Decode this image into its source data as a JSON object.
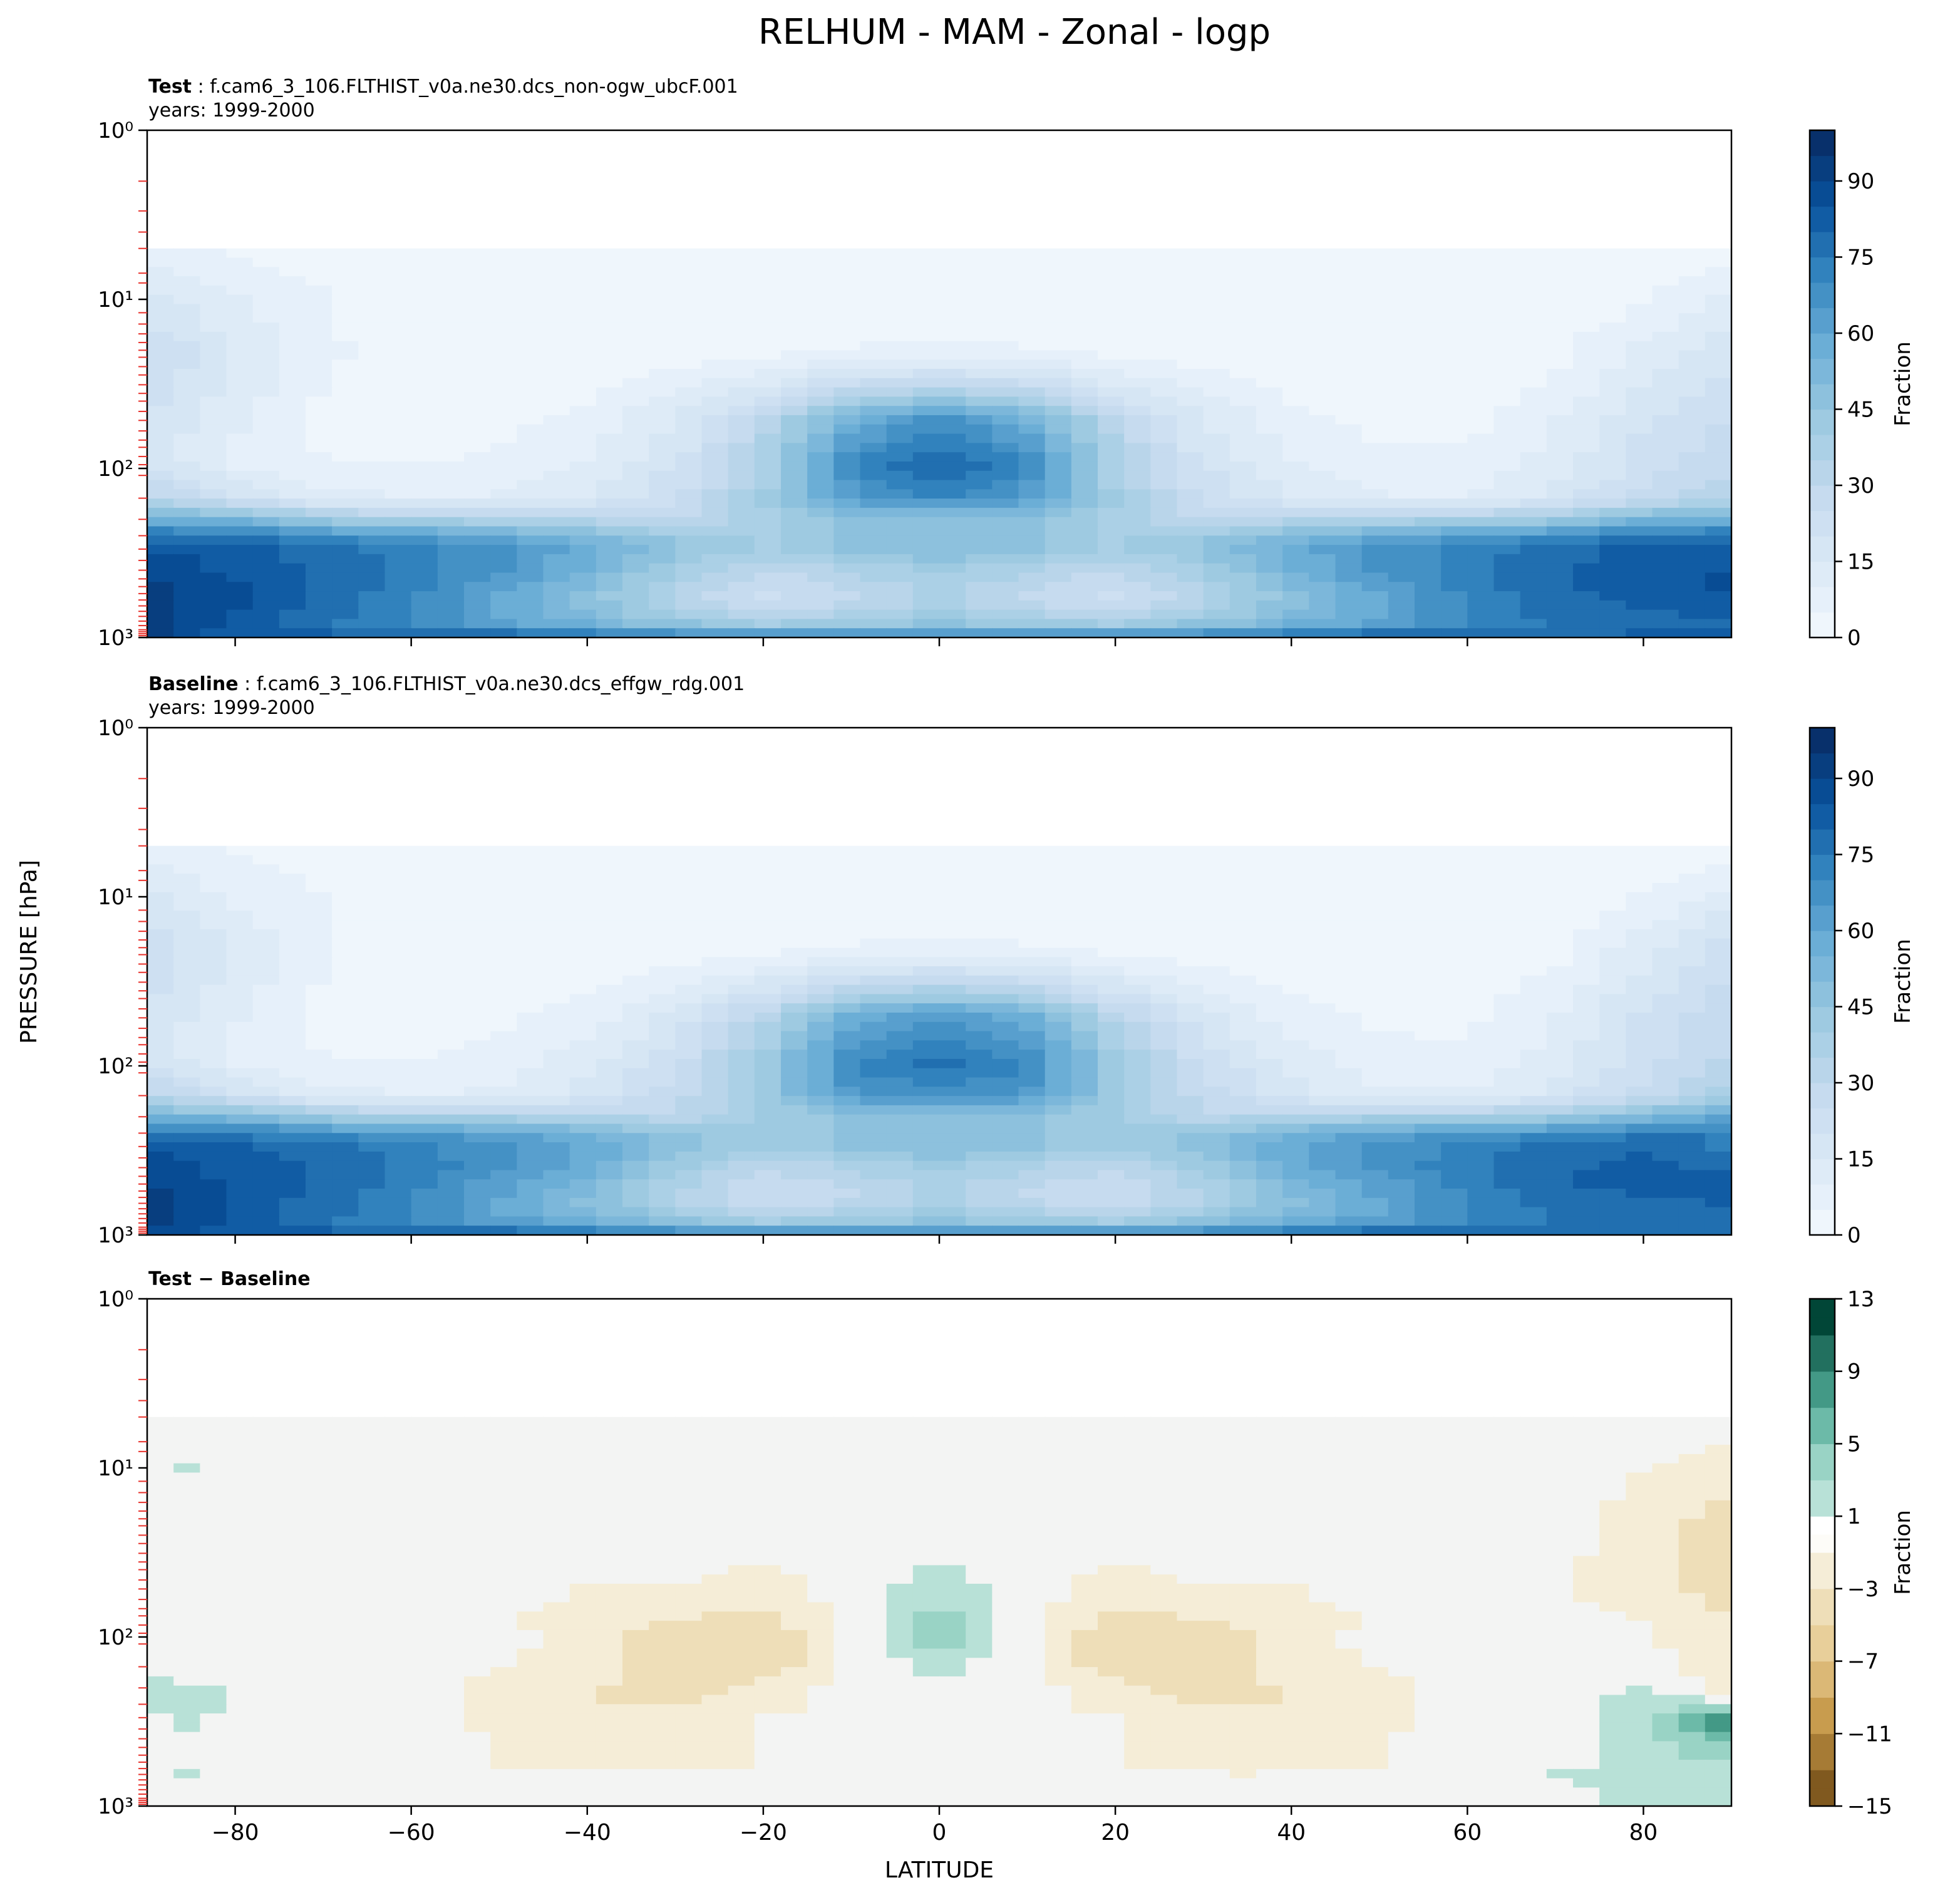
{
  "figure_title": "RELHUM - MAM - Zonal - logp",
  "ylabel": "PRESSURE [hPa]",
  "xlabel": "LATITUDE",
  "colorbar_label": "Fraction",
  "panels": [
    {
      "id": "test",
      "title_bold": "Test",
      "title_rest": " : f.cam6_3_106.FLTHIST_v0a.ne30.dcs_non-ogw_ubcF.001",
      "years": "years: 1999-2000",
      "colorbar": {
        "cmap": "Blues",
        "ticks": [
          "0",
          "15",
          "30",
          "45",
          "60",
          "75",
          "90"
        ],
        "vmin": 0,
        "vmax": 100
      }
    },
    {
      "id": "baseline",
      "title_bold": "Baseline",
      "title_rest": " : f.cam6_3_106.FLTHIST_v0a.ne30.dcs_effgw_rdg.001",
      "years": "years: 1999-2000",
      "colorbar": {
        "cmap": "Blues",
        "ticks": [
          "0",
          "15",
          "30",
          "45",
          "60",
          "75",
          "90"
        ],
        "vmin": 0,
        "vmax": 100
      }
    },
    {
      "id": "diff",
      "title_bold": "Test − Baseline",
      "title_rest": "",
      "years": "",
      "colorbar": {
        "cmap": "BrBG",
        "ticks": [
          "−15",
          "−11",
          "−7",
          "−3",
          "1",
          "5",
          "9",
          "13"
        ],
        "vmin": -15,
        "vmax": 13
      }
    }
  ],
  "chart_data": {
    "type": "heatmap",
    "title": "RELHUM - MAM - Zonal - logp",
    "xlabel": "LATITUDE",
    "ylabel": "PRESSURE [hPa]",
    "x_ticks": [
      "−80",
      "−60",
      "−40",
      "−20",
      "0",
      "20",
      "40",
      "60",
      "80"
    ],
    "x_tick_values": [
      -80,
      -60,
      -40,
      -20,
      0,
      20,
      40,
      60,
      80
    ],
    "xlim": [
      -90,
      90
    ],
    "y_ticks": [
      "10⁰",
      "10¹",
      "10²",
      "10³"
    ],
    "y_tick_values": [
      1,
      10,
      100,
      1000
    ],
    "ylim": [
      1000,
      1
    ],
    "yscale": "log",
    "data_top_hPa": 5,
    "lat": [
      -90,
      -80,
      -70,
      -60,
      -50,
      -40,
      -30,
      -20,
      -10,
      0,
      10,
      20,
      30,
      40,
      50,
      60,
      70,
      80,
      90
    ],
    "pressure": [
      5,
      10,
      20,
      50,
      80,
      100,
      150,
      200,
      250,
      300,
      400,
      500,
      600,
      700,
      850,
      925,
      1000
    ],
    "test_rh": [
      [
        10,
        7,
        5,
        4,
        4,
        4,
        4,
        4,
        4,
        4,
        4,
        4,
        4,
        4,
        4,
        4,
        4,
        4,
        5
      ],
      [
        20,
        13,
        8,
        4,
        4,
        4,
        4,
        4,
        4,
        4,
        4,
        4,
        4,
        4,
        4,
        4,
        4,
        7,
        14
      ],
      [
        28,
        18,
        9,
        4,
        4,
        4,
        5,
        6,
        8,
        9,
        8,
        6,
        5,
        4,
        4,
        4,
        6,
        14,
        22
      ],
      [
        22,
        14,
        6,
        5,
        6,
        9,
        18,
        34,
        58,
        70,
        58,
        34,
        18,
        9,
        6,
        6,
        12,
        22,
        28
      ],
      [
        20,
        10,
        7,
        6,
        8,
        12,
        20,
        38,
        70,
        80,
        70,
        38,
        20,
        12,
        8,
        8,
        14,
        24,
        30
      ],
      [
        25,
        12,
        9,
        8,
        10,
        14,
        24,
        40,
        72,
        84,
        72,
        40,
        24,
        14,
        10,
        10,
        15,
        25,
        32
      ],
      [
        35,
        25,
        15,
        12,
        13,
        18,
        26,
        42,
        65,
        72,
        65,
        42,
        26,
        18,
        13,
        13,
        20,
        30,
        38
      ],
      [
        60,
        55,
        45,
        40,
        38,
        35,
        30,
        40,
        48,
        50,
        48,
        40,
        30,
        35,
        38,
        40,
        45,
        55,
        60
      ],
      [
        80,
        78,
        72,
        68,
        62,
        55,
        45,
        42,
        48,
        52,
        48,
        42,
        45,
        55,
        62,
        68,
        72,
        78,
        80
      ],
      [
        88,
        84,
        80,
        74,
        68,
        60,
        48,
        42,
        48,
        52,
        48,
        42,
        48,
        60,
        68,
        74,
        80,
        84,
        86
      ],
      [
        92,
        86,
        82,
        76,
        68,
        58,
        42,
        32,
        38,
        44,
        38,
        32,
        42,
        58,
        68,
        76,
        82,
        86,
        88
      ],
      [
        94,
        88,
        82,
        74,
        64,
        52,
        38,
        28,
        34,
        40,
        34,
        28,
        38,
        52,
        64,
        74,
        82,
        86,
        88
      ],
      [
        95,
        88,
        80,
        72,
        62,
        50,
        36,
        26,
        32,
        38,
        32,
        26,
        36,
        50,
        62,
        72,
        80,
        84,
        86
      ],
      [
        96,
        88,
        80,
        72,
        62,
        52,
        40,
        32,
        36,
        42,
        36,
        32,
        40,
        52,
        62,
        72,
        80,
        82,
        84
      ],
      [
        96,
        86,
        78,
        72,
        66,
        58,
        50,
        44,
        46,
        50,
        46,
        44,
        50,
        58,
        66,
        72,
        78,
        80,
        82
      ],
      [
        95,
        84,
        82,
        80,
        76,
        70,
        64,
        60,
        60,
        62,
        60,
        60,
        64,
        70,
        76,
        80,
        80,
        82,
        84
      ],
      [
        92,
        86,
        86,
        88,
        88,
        86,
        84,
        82,
        82,
        84,
        82,
        82,
        84,
        86,
        88,
        88,
        86,
        86,
        86
      ]
    ],
    "baseline_rh": [
      [
        10,
        7,
        5,
        4,
        4,
        4,
        4,
        4,
        4,
        4,
        4,
        4,
        4,
        4,
        4,
        4,
        4,
        4,
        5
      ],
      [
        19,
        12,
        8,
        4,
        4,
        4,
        4,
        4,
        4,
        4,
        4,
        4,
        4,
        4,
        4,
        4,
        4,
        8,
        16
      ],
      [
        27,
        17,
        8,
        4,
        4,
        4,
        5,
        6,
        8,
        9,
        8,
        6,
        5,
        4,
        4,
        4,
        6,
        16,
        26
      ],
      [
        22,
        13,
        6,
        5,
        6,
        10,
        19,
        36,
        58,
        68,
        58,
        36,
        19,
        10,
        6,
        6,
        13,
        24,
        32
      ],
      [
        20,
        10,
        7,
        6,
        9,
        14,
        23,
        42,
        70,
        76,
        70,
        42,
        23,
        14,
        9,
        8,
        14,
        25,
        32
      ],
      [
        25,
        12,
        9,
        8,
        10,
        16,
        28,
        45,
        72,
        80,
        72,
        45,
        28,
        16,
        10,
        10,
        15,
        26,
        34
      ],
      [
        35,
        25,
        15,
        12,
        14,
        20,
        30,
        46,
        66,
        70,
        66,
        46,
        30,
        20,
        14,
        13,
        20,
        30,
        40
      ],
      [
        58,
        54,
        45,
        40,
        40,
        38,
        34,
        42,
        48,
        50,
        48,
        42,
        34,
        38,
        40,
        40,
        45,
        54,
        62
      ],
      [
        78,
        77,
        72,
        68,
        64,
        58,
        48,
        44,
        48,
        52,
        48,
        44,
        48,
        58,
        64,
        68,
        72,
        76,
        78
      ],
      [
        87,
        83,
        80,
        74,
        70,
        62,
        50,
        43,
        48,
        52,
        48,
        43,
        50,
        62,
        70,
        74,
        80,
        82,
        76
      ],
      [
        91,
        85,
        82,
        76,
        69,
        60,
        44,
        33,
        38,
        44,
        38,
        33,
        44,
        60,
        69,
        76,
        82,
        84,
        82
      ],
      [
        93,
        87,
        82,
        74,
        65,
        54,
        40,
        29,
        34,
        40,
        34,
        29,
        40,
        54,
        65,
        74,
        82,
        84,
        84
      ],
      [
        94,
        87,
        80,
        72,
        63,
        51,
        37,
        27,
        32,
        38,
        32,
        27,
        37,
        51,
        63,
        72,
        80,
        83,
        84
      ],
      [
        95,
        87,
        80,
        72,
        62,
        53,
        41,
        32,
        36,
        42,
        36,
        32,
        41,
        53,
        62,
        72,
        79,
        80,
        82
      ],
      [
        95,
        85,
        78,
        72,
        66,
        58,
        50,
        44,
        46,
        50,
        46,
        44,
        50,
        58,
        66,
        72,
        78,
        78,
        80
      ],
      [
        94,
        83,
        82,
        80,
        76,
        70,
        64,
        60,
        60,
        62,
        60,
        60,
        64,
        70,
        76,
        80,
        80,
        80,
        82
      ],
      [
        91,
        85,
        86,
        88,
        88,
        86,
        84,
        82,
        82,
        84,
        82,
        82,
        84,
        86,
        88,
        88,
        86,
        85,
        85
      ]
    ],
    "diff_rh": [
      [
        0,
        0,
        0,
        0,
        0,
        0,
        0,
        0,
        0,
        0,
        0,
        0,
        0,
        0,
        0,
        0,
        0,
        0,
        0
      ],
      [
        1,
        1,
        0,
        0,
        0,
        0,
        0,
        0,
        0,
        0,
        0,
        0,
        0,
        0,
        0,
        0,
        0,
        -1,
        -2
      ],
      [
        1,
        1,
        1,
        0,
        0,
        0,
        0,
        0,
        0,
        0,
        0,
        0,
        0,
        0,
        0,
        0,
        0,
        -2,
        -4
      ],
      [
        0,
        1,
        0,
        0,
        0,
        -1,
        -1,
        -2,
        0,
        2,
        0,
        -2,
        -1,
        -1,
        0,
        0,
        -1,
        -2,
        -4
      ],
      [
        0,
        0,
        0,
        0,
        -1,
        -2,
        -3,
        -4,
        0,
        4,
        0,
        -4,
        -3,
        -2,
        -1,
        0,
        0,
        -1,
        -3
      ],
      [
        0,
        0,
        0,
        0,
        0,
        -2,
        -4,
        -5,
        0,
        4,
        0,
        -5,
        -4,
        -2,
        0,
        0,
        0,
        -1,
        -2
      ],
      [
        0,
        0,
        0,
        0,
        -1,
        -2,
        -4,
        -4,
        -1,
        2,
        -1,
        -4,
        -4,
        -2,
        -1,
        0,
        0,
        0,
        -2
      ],
      [
        2,
        1,
        0,
        0,
        -2,
        -3,
        -4,
        -2,
        0,
        0,
        0,
        -2,
        -4,
        -3,
        -2,
        0,
        0,
        1,
        -2
      ],
      [
        2,
        1,
        0,
        0,
        -2,
        -3,
        -3,
        -2,
        0,
        0,
        0,
        -2,
        -3,
        -3,
        -2,
        0,
        0,
        2,
        2
      ],
      [
        1,
        1,
        0,
        0,
        -2,
        -2,
        -2,
        -1,
        0,
        0,
        0,
        -1,
        -2,
        -2,
        -2,
        0,
        0,
        2,
        10
      ],
      [
        1,
        1,
        0,
        0,
        -1,
        -2,
        -2,
        -1,
        0,
        0,
        0,
        -1,
        -2,
        -2,
        -1,
        0,
        0,
        2,
        6
      ],
      [
        1,
        1,
        0,
        0,
        -1,
        -2,
        -2,
        -1,
        0,
        0,
        0,
        -1,
        -2,
        -2,
        -1,
        0,
        0,
        2,
        4
      ],
      [
        1,
        1,
        0,
        0,
        -1,
        -1,
        -1,
        -1,
        0,
        0,
        0,
        -1,
        -1,
        -1,
        -1,
        0,
        1,
        1,
        2
      ],
      [
        1,
        1,
        0,
        0,
        0,
        -1,
        -1,
        0,
        0,
        0,
        0,
        0,
        -1,
        -1,
        0,
        0,
        1,
        2,
        2
      ],
      [
        1,
        1,
        0,
        0,
        0,
        0,
        0,
        0,
        0,
        0,
        0,
        0,
        0,
        0,
        0,
        0,
        0,
        2,
        2
      ],
      [
        1,
        1,
        0,
        0,
        0,
        0,
        0,
        0,
        0,
        0,
        0,
        0,
        0,
        0,
        0,
        0,
        0,
        2,
        2
      ],
      [
        1,
        1,
        0,
        0,
        0,
        0,
        0,
        0,
        0,
        0,
        0,
        0,
        0,
        0,
        0,
        0,
        0,
        1,
        1
      ]
    ]
  }
}
